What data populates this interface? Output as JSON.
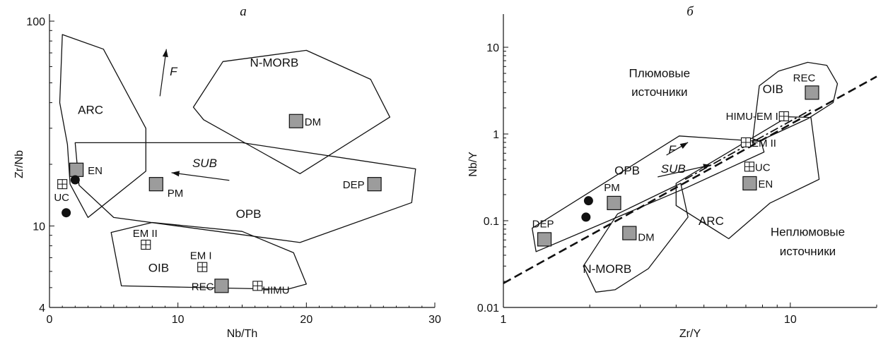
{
  "colors": {
    "ink": "#111111",
    "square_fill": "#9c9c9c",
    "background": "#ffffff"
  },
  "chart_data": [
    {
      "id": "a",
      "type": "scatter",
      "title": "а",
      "xlabel": "Nb/Th",
      "ylabel": "Zr/Nb",
      "xscale": "linear",
      "yscale": "log",
      "xlim": [
        0,
        30
      ],
      "ylim": [
        4,
        100
      ],
      "xticks": [
        {
          "v": 0,
          "label": "0"
        },
        {
          "v": 10,
          "label": "10"
        },
        {
          "v": 20,
          "label": "20"
        },
        {
          "v": 30,
          "label": "30"
        }
      ],
      "yticks": [
        {
          "v": 4,
          "label": "4"
        },
        {
          "v": 10,
          "label": "10"
        },
        {
          "v": 100,
          "label": "100"
        }
      ],
      "fields": [
        {
          "label": "ARC",
          "label_at": [
            3.2,
            37
          ],
          "polygon": [
            [
              1,
              86
            ],
            [
              4.2,
              73
            ],
            [
              7.5,
              30
            ],
            [
              7.5,
              18.5
            ],
            [
              3,
              11
            ],
            [
              1.6,
              16
            ],
            [
              1.4,
              25
            ],
            [
              0.8,
              40
            ]
          ]
        },
        {
          "label": "N-MORB",
          "label_at": [
            17.5,
            63
          ],
          "polygon": [
            [
              13.5,
              63.5
            ],
            [
              20,
              72
            ],
            [
              25,
              52
            ],
            [
              26.5,
              34
            ],
            [
              19.5,
              18
            ],
            [
              12,
              33
            ],
            [
              11.2,
              38
            ]
          ]
        },
        {
          "label": "OPB",
          "label_at": [
            15.5,
            11.5
          ],
          "polygon": [
            [
              2,
              25.5
            ],
            [
              15,
              25.5
            ],
            [
              28.5,
              19
            ],
            [
              28.2,
              13
            ],
            [
              19.5,
              8.3
            ],
            [
              5,
              11
            ],
            [
              2.3,
              15.8
            ]
          ]
        },
        {
          "label": "OIB",
          "label_at": [
            8.5,
            6.25
          ],
          "polygon": [
            [
              4.8,
              9.3
            ],
            [
              8,
              10.4
            ],
            [
              15,
              9.4
            ],
            [
              19,
              7.4
            ],
            [
              20,
              5.2
            ],
            [
              18.5,
              4.9
            ],
            [
              5.6,
              5.1
            ]
          ]
        }
      ],
      "points": [
        {
          "label": "DM",
          "kind": "square",
          "x": 19.2,
          "y": 32.5
        },
        {
          "label": "DEP",
          "kind": "square",
          "x": 25.3,
          "y": 16
        },
        {
          "label": "PM",
          "kind": "square",
          "x": 8.3,
          "y": 16
        },
        {
          "label": "EN",
          "kind": "square",
          "x": 2.1,
          "y": 18.8
        },
        {
          "label": "REC",
          "kind": "square",
          "x": 13.4,
          "y": 5.1
        },
        {
          "label": "EM II",
          "kind": "grid",
          "x": 7.5,
          "y": 8.1
        },
        {
          "label": "EM I",
          "kind": "grid",
          "x": 11.9,
          "y": 6.3
        },
        {
          "label": "HIMU",
          "kind": "grid",
          "x": 16.2,
          "y": 5.1
        },
        {
          "label": "UC",
          "kind": "grid",
          "x": 1,
          "y": 16
        },
        {
          "label": "",
          "kind": "dot",
          "x": 2,
          "y": 16.8
        },
        {
          "label": "",
          "kind": "dot",
          "x": 1.3,
          "y": 11.6
        }
      ],
      "vectors": [
        {
          "label": "F",
          "from": [
            8.6,
            43
          ],
          "to": [
            9.1,
            73
          ]
        },
        {
          "label": "SUB",
          "from": [
            14,
            16.7
          ],
          "to": [
            9.5,
            18.2
          ]
        }
      ]
    },
    {
      "id": "b",
      "type": "scatter",
      "title": "б",
      "xlabel": "Zr/Y",
      "ylabel": "Nb/Y",
      "xscale": "log",
      "yscale": "log",
      "xlim": [
        1,
        20
      ],
      "ylim": [
        0.01,
        20
      ],
      "xticks": [
        {
          "v": 1,
          "label": "1"
        },
        {
          "v": 10,
          "label": "10"
        }
      ],
      "yticks": [
        {
          "v": 0.01,
          "label": "0.01"
        },
        {
          "v": 0.1,
          "label": "0.1"
        },
        {
          "v": 1,
          "label": "1"
        },
        {
          "v": 10,
          "label": "10"
        }
      ],
      "fields": [
        {
          "label": "OIB",
          "label_at": [
            8.7,
            3.3
          ],
          "polygon": [
            [
              7.4,
              0.88
            ],
            [
              7.8,
              3.6
            ],
            [
              9.1,
              5.3
            ],
            [
              11.5,
              6.7
            ],
            [
              13.4,
              6.2
            ],
            [
              14.6,
              3.8
            ],
            [
              14.1,
              2.3
            ],
            [
              11.5,
              1.5
            ],
            [
              7.8,
              0.83
            ]
          ]
        },
        {
          "label": "OPB",
          "label_at": [
            2.7,
            0.38
          ],
          "polygon": [
            [
              1.3,
              0.044
            ],
            [
              4.35,
              0.24
            ],
            [
              8.1,
              0.62
            ],
            [
              7.9,
              0.82
            ],
            [
              4.1,
              0.95
            ],
            [
              1.26,
              0.082
            ]
          ]
        },
        {
          "label": "N-MORB",
          "label_at": [
            2.3,
            0.028
          ],
          "polygon": [
            [
              1.9,
              0.03
            ],
            [
              2.1,
              0.015
            ],
            [
              2.45,
              0.016
            ],
            [
              3.2,
              0.028
            ],
            [
              4.4,
              0.11
            ],
            [
              4.15,
              0.27
            ],
            [
              2.5,
              0.12
            ]
          ]
        },
        {
          "label": "ARC",
          "label_at": [
            5.3,
            0.1
          ],
          "polygon": [
            [
              4.0,
              0.27
            ],
            [
              9.8,
              1.58
            ],
            [
              11.8,
              1.55
            ],
            [
              12.6,
              0.3
            ],
            [
              8.5,
              0.16
            ],
            [
              6.1,
              0.062
            ],
            [
              4.0,
              0.15
            ]
          ]
        }
      ],
      "points": [
        {
          "label": "REC",
          "kind": "square",
          "x": 11.9,
          "y": 3
        },
        {
          "label": "DEP",
          "kind": "square",
          "x": 1.39,
          "y": 0.061
        },
        {
          "label": "PM",
          "kind": "square",
          "x": 2.43,
          "y": 0.16
        },
        {
          "label": "DM",
          "kind": "square",
          "x": 2.75,
          "y": 0.072
        },
        {
          "label": "EN",
          "kind": "square",
          "x": 7.22,
          "y": 0.27
        },
        {
          "label": "HIMU-EM I",
          "kind": "grid",
          "x": 9.5,
          "y": 1.6
        },
        {
          "label": "EM II",
          "kind": "grid",
          "x": 7,
          "y": 0.8
        },
        {
          "label": "UC",
          "kind": "grid",
          "x": 7.2,
          "y": 0.42
        },
        {
          "label": "",
          "kind": "dot",
          "x": 1.98,
          "y": 0.17
        },
        {
          "label": "",
          "kind": "dot",
          "x": 1.94,
          "y": 0.11
        }
      ],
      "vectors": [
        {
          "label": "F",
          "from": [
            3.7,
            0.57
          ],
          "to": [
            4.4,
            0.8
          ]
        },
        {
          "label": "SUB",
          "from": [
            3.45,
            0.32
          ],
          "to": [
            5.3,
            0.44
          ]
        }
      ],
      "lines": [
        {
          "style": "dashed",
          "from": [
            1,
            0.019
          ],
          "to": [
            20,
            4.6
          ]
        },
        {
          "style": "dash-dot",
          "from": [
            4.3,
            0.3
          ],
          "to": [
            11.8,
            1.9
          ]
        }
      ],
      "annotations": [
        {
          "text": "Плюмовые",
          "at": [
            3.5,
            4.5
          ]
        },
        {
          "text": "источники",
          "at": [
            3.5,
            2.75
          ]
        },
        {
          "text": "Неплюмовые",
          "at": [
            11.5,
            0.067
          ]
        },
        {
          "text": "источники",
          "at": [
            11.5,
            0.04
          ]
        }
      ]
    }
  ]
}
